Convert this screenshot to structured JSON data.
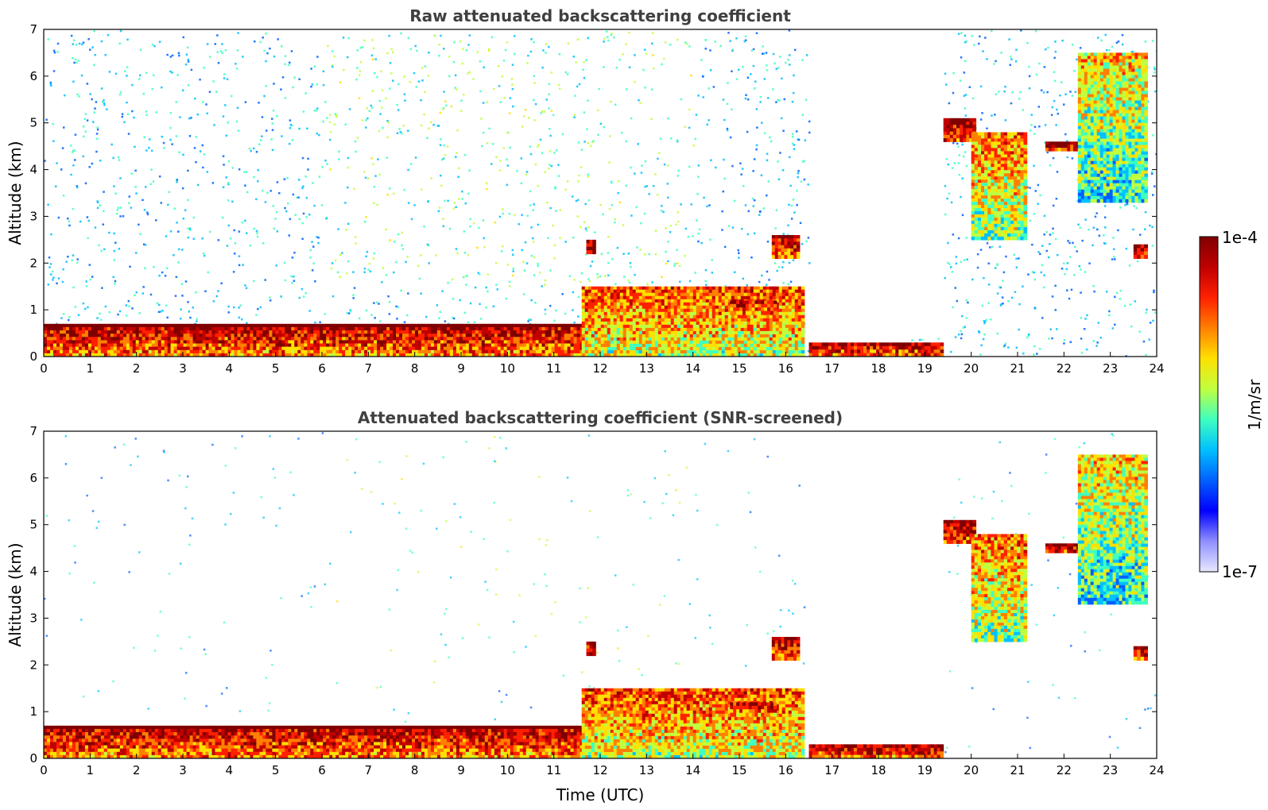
{
  "chart_data": [
    {
      "type": "heatmap",
      "title": "Raw attenuated backscattering coefficient",
      "xlabel": "",
      "ylabel": "Altitude (km)",
      "xlim": [
        0,
        24
      ],
      "ylim": [
        0,
        7
      ],
      "xticks": [
        "0",
        "1",
        "2",
        "3",
        "4",
        "5",
        "6",
        "7",
        "8",
        "9",
        "10",
        "11",
        "12",
        "13",
        "14",
        "15",
        "16",
        "17",
        "18",
        "19",
        "20",
        "21",
        "22",
        "23",
        "24"
      ],
      "yticks": [
        "0",
        "1",
        "2",
        "3",
        "4",
        "5",
        "6",
        "7"
      ],
      "screened": false,
      "features": [
        {
          "name": "boundary layer",
          "t": [
            0,
            11.7
          ],
          "alt": [
            0,
            0.7
          ],
          "level": 0.95
        },
        {
          "name": "low cloud band",
          "t": [
            11.6,
            16.4
          ],
          "alt": [
            0,
            1.5
          ],
          "level": 0.8
        },
        {
          "name": "cloud 11.8h",
          "t": [
            11.7,
            11.9
          ],
          "alt": [
            2.2,
            2.5
          ],
          "level": 1.0
        },
        {
          "name": "cloud 16h",
          "t": [
            15.7,
            16.3
          ],
          "alt": [
            2.1,
            2.6
          ],
          "level": 0.95
        },
        {
          "name": "cloud 15h",
          "t": [
            14.8,
            15.8
          ],
          "alt": [
            0.9,
            1.2
          ],
          "level": 0.9
        },
        {
          "name": "surface layer",
          "t": [
            16.5,
            19.4
          ],
          "alt": [
            0,
            0.3
          ],
          "level": 0.95
        },
        {
          "name": "mid cloud 20h",
          "t": [
            19.4,
            20.1
          ],
          "alt": [
            4.6,
            5.1
          ],
          "level": 1.0
        },
        {
          "name": "virga 20-21h",
          "t": [
            20.0,
            21.2
          ],
          "alt": [
            2.5,
            4.8
          ],
          "level": 0.75
        },
        {
          "name": "cloud 22h",
          "t": [
            21.6,
            22.4
          ],
          "alt": [
            4.4,
            4.6
          ],
          "level": 1.0
        },
        {
          "name": "high cloud 23h",
          "t": [
            22.3,
            23.8
          ],
          "alt": [
            3.3,
            6.5
          ],
          "level": 0.65
        },
        {
          "name": "cloud 23.7h",
          "t": [
            23.5,
            23.8
          ],
          "alt": [
            2.1,
            2.4
          ],
          "level": 1.0
        }
      ]
    },
    {
      "type": "heatmap",
      "title": "Attenuated backscattering coefficient (SNR-screened)",
      "xlabel": "Time (UTC)",
      "ylabel": "Altitude (km)",
      "xlim": [
        0,
        24
      ],
      "ylim": [
        0,
        7
      ],
      "xticks": [
        "0",
        "1",
        "2",
        "3",
        "4",
        "5",
        "6",
        "7",
        "8",
        "9",
        "10",
        "11",
        "12",
        "13",
        "14",
        "15",
        "16",
        "17",
        "18",
        "19",
        "20",
        "21",
        "22",
        "23",
        "24"
      ],
      "yticks": [
        "0",
        "1",
        "2",
        "3",
        "4",
        "5",
        "6",
        "7"
      ],
      "screened": true,
      "features": [
        {
          "name": "boundary layer",
          "t": [
            0,
            11.7
          ],
          "alt": [
            0,
            0.7
          ],
          "level": 0.95
        },
        {
          "name": "low cloud band",
          "t": [
            11.6,
            16.4
          ],
          "alt": [
            0,
            1.5
          ],
          "level": 0.8
        },
        {
          "name": "cloud 11.8h",
          "t": [
            11.7,
            11.9
          ],
          "alt": [
            2.2,
            2.5
          ],
          "level": 1.0
        },
        {
          "name": "cloud 16h",
          "t": [
            15.7,
            16.3
          ],
          "alt": [
            2.1,
            2.6
          ],
          "level": 0.95
        },
        {
          "name": "cloud 15h",
          "t": [
            14.8,
            15.8
          ],
          "alt": [
            0.9,
            1.2
          ],
          "level": 0.9
        },
        {
          "name": "surface layer",
          "t": [
            16.5,
            19.4
          ],
          "alt": [
            0,
            0.3
          ],
          "level": 0.95
        },
        {
          "name": "mid cloud 20h",
          "t": [
            19.4,
            20.1
          ],
          "alt": [
            4.6,
            5.1
          ],
          "level": 1.0
        },
        {
          "name": "virga 20-21h",
          "t": [
            20.0,
            21.2
          ],
          "alt": [
            2.5,
            4.8
          ],
          "level": 0.75
        },
        {
          "name": "cloud 22h",
          "t": [
            21.6,
            22.4
          ],
          "alt": [
            4.4,
            4.6
          ],
          "level": 1.0
        },
        {
          "name": "high cloud 23h",
          "t": [
            22.3,
            23.8
          ],
          "alt": [
            3.3,
            6.5
          ],
          "level": 0.65
        },
        {
          "name": "cloud 23.7h",
          "t": [
            23.5,
            23.8
          ],
          "alt": [
            2.1,
            2.4
          ],
          "level": 1.0
        }
      ]
    }
  ],
  "colorbar": {
    "max_label": "1e-4",
    "min_label": "1e-7",
    "units_label": "1/m/sr",
    "colors": [
      "#e8e8ff",
      "#8f8fff",
      "#0000ff",
      "#0060ff",
      "#00c0ff",
      "#40ffc0",
      "#c0ff40",
      "#ffe000",
      "#ff8000",
      "#ff2000",
      "#c00000",
      "#800000"
    ]
  }
}
